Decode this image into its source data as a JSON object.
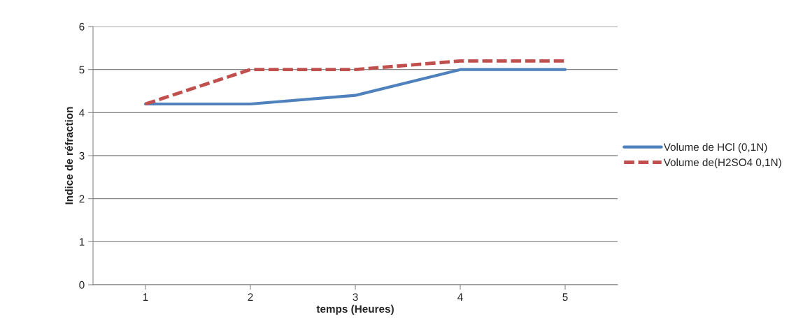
{
  "chart_data": {
    "type": "line",
    "xlabel": "temps (Heures)",
    "ylabel": "Indice de réfraction",
    "categories": [
      "1",
      "2",
      "3",
      "4",
      "5"
    ],
    "series": [
      {
        "name": "Volume de HCl (0,1N)",
        "color": "#4f81bd",
        "line_style": "solid",
        "values": [
          4.2,
          4.2,
          4.4,
          5,
          5
        ]
      },
      {
        "name": "Volume de(H2SO4 0,1N)",
        "color": "#c0504d",
        "line_style": "dashed",
        "values": [
          4.2,
          5,
          5,
          5.2,
          5.2
        ]
      }
    ],
    "ylim": [
      0,
      6
    ],
    "yticks": [
      0,
      1,
      2,
      3,
      4,
      5,
      6
    ],
    "grid": "y",
    "legend": "right",
    "marker": "none"
  }
}
